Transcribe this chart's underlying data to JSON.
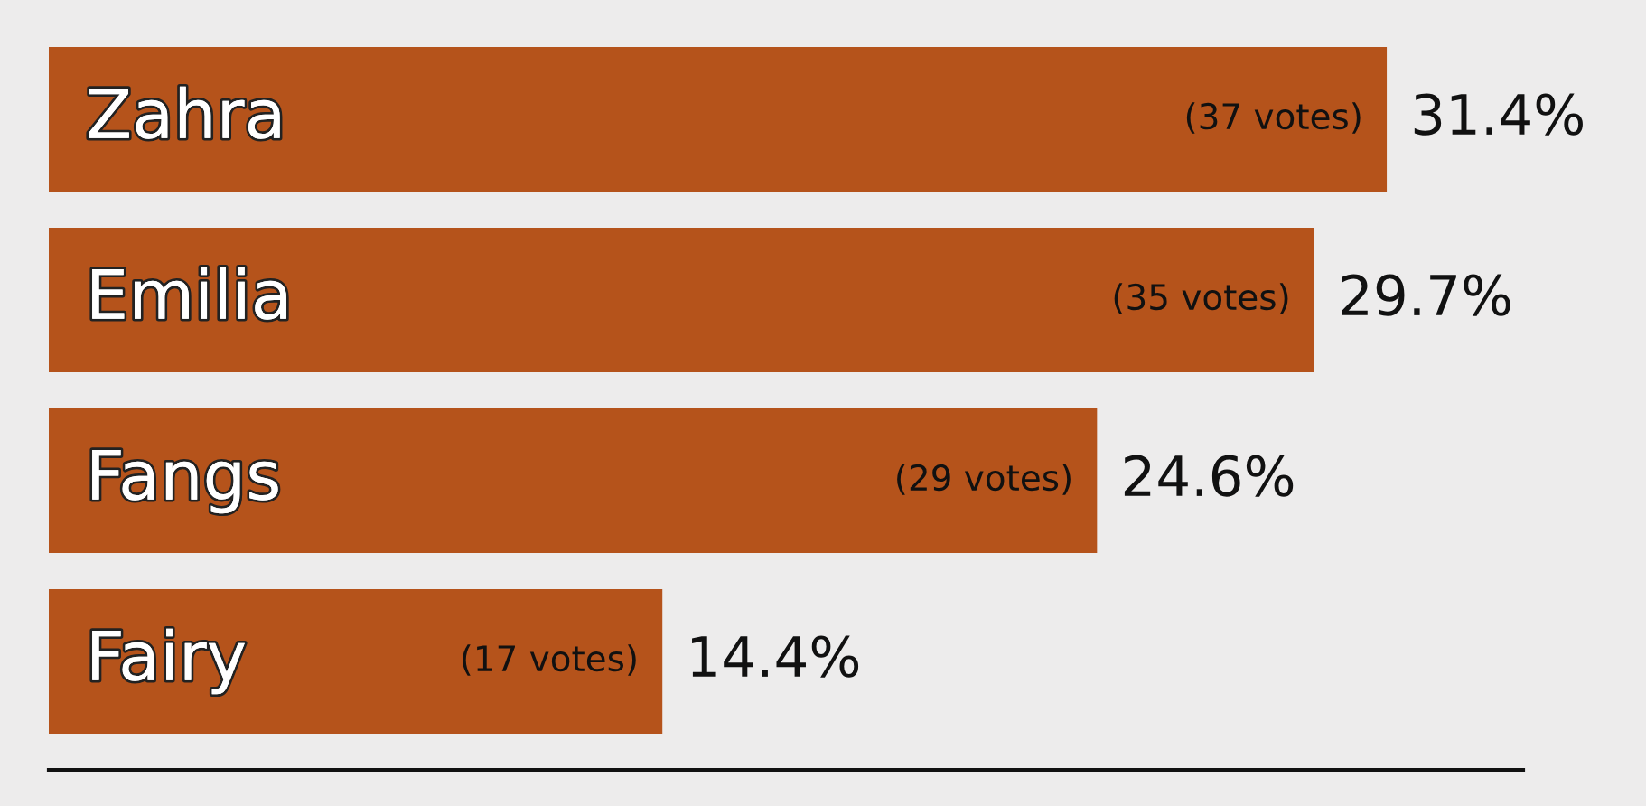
{
  "chart_data": {
    "type": "bar",
    "orientation": "horizontal",
    "categories": [
      "Zahra",
      "Emilia",
      "Fangs",
      "Fairy"
    ],
    "values": [
      31.4,
      29.7,
      24.6,
      14.4
    ],
    "value_labels": [
      "31.4%",
      "29.7%",
      "24.6%",
      "14.4%"
    ],
    "color": "#b5531b",
    "xlim": [
      0,
      34.6
    ],
    "annotations": [
      {
        "text": "(37 votes)",
        "x": 31.4,
        "y": "Zahra"
      },
      {
        "text": "(35 votes)",
        "x": 29.7,
        "y": "Emilia"
      },
      {
        "text": "(29 votes)",
        "x": 24.6,
        "y": "Fangs"
      },
      {
        "text": "(17 votes)",
        "x": 14.4,
        "y": "Fairy"
      }
    ]
  }
}
